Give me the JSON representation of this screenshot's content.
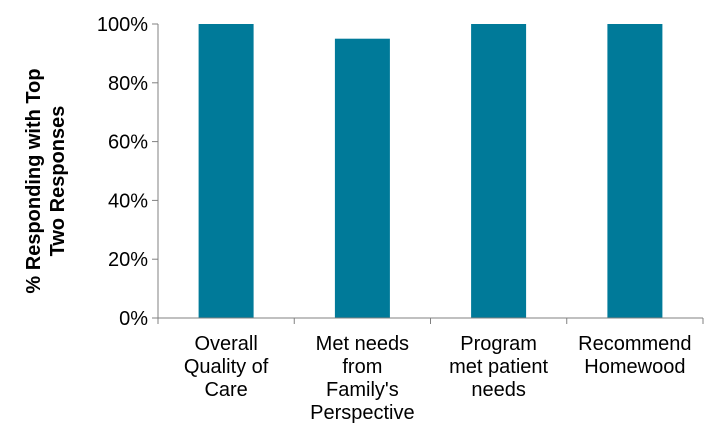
{
  "chart_data": {
    "type": "bar",
    "categories": [
      "Overall Quality of Care",
      "Met needs from Family's Perspective",
      "Program met patient needs",
      "Recommend Homewood"
    ],
    "category_lines": [
      [
        "Overall",
        "Quality of",
        "Care"
      ],
      [
        "Met needs",
        "from",
        "Family's",
        "Perspective"
      ],
      [
        "Program",
        "met patient",
        "needs"
      ],
      [
        "Recommend",
        "Homewood"
      ]
    ],
    "values": [
      100,
      95,
      100,
      100
    ],
    "ylabel_lines": [
      "% Responding with Top",
      "Two Responses"
    ],
    "ylim": [
      0,
      100
    ],
    "yticks": [
      0,
      20,
      40,
      60,
      80,
      100
    ],
    "ytick_labels": [
      "0%",
      "20%",
      "40%",
      "60%",
      "80%",
      "100%"
    ],
    "grid": false,
    "bar_color": "#007a99",
    "axis_color": "#808080"
  }
}
